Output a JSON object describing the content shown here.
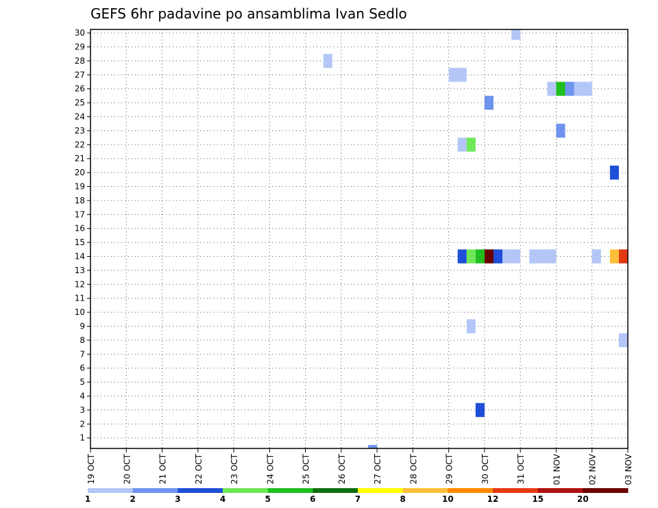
{
  "chart_data": {
    "type": "heatmap",
    "title": "GEFS 6hr padavine po ansamblima Ivan Sedlo",
    "xlabel": "",
    "ylabel": "",
    "x_ticks": [
      "19 OCT",
      "20 OCT",
      "21 OCT",
      "22 OCT",
      "23 OCT",
      "24 OCT",
      "25 OCT",
      "26 OCT",
      "27 OCT",
      "28 OCT",
      "29 OCT",
      "30 OCT",
      "31 OCT",
      "01 NOV",
      "02 NOV",
      "03 NOV"
    ],
    "x_range_days": [
      0,
      15
    ],
    "y_ticks": [
      1,
      2,
      3,
      4,
      5,
      6,
      7,
      8,
      9,
      10,
      11,
      12,
      13,
      14,
      15,
      16,
      17,
      18,
      19,
      20,
      21,
      22,
      23,
      24,
      25,
      26,
      27,
      28,
      29,
      30
    ],
    "y_range": [
      0.25,
      30.25
    ],
    "grid": true,
    "colorbar": {
      "labels": [
        "1",
        "2",
        "3",
        "4",
        "5",
        "6",
        "7",
        "8",
        "10",
        "12",
        "15",
        "20"
      ],
      "colors": [
        "#b3c6f7",
        "#6f94ee",
        "#1f4fd8",
        "#6ee858",
        "#1fbf1f",
        "#0e6e0e",
        "#ffff00",
        "#ffbf3a",
        "#ff8a00",
        "#e43a12",
        "#b01010",
        "#6a0000"
      ]
    },
    "cells": [
      {
        "member": 30,
        "day": 11.875,
        "v": 1
      },
      {
        "member": 28,
        "day": 6.625,
        "v": 1
      },
      {
        "member": 27,
        "day": 10.125,
        "v": 1
      },
      {
        "member": 27,
        "day": 10.375,
        "v": 1
      },
      {
        "member": 26,
        "day": 12.875,
        "v": 1
      },
      {
        "member": 26,
        "day": 13.125,
        "v": 5
      },
      {
        "member": 26,
        "day": 13.375,
        "v": 2
      },
      {
        "member": 26,
        "day": 13.625,
        "v": 1
      },
      {
        "member": 26,
        "day": 13.875,
        "v": 1
      },
      {
        "member": 25,
        "day": 11.125,
        "v": 2
      },
      {
        "member": 23,
        "day": 13.125,
        "v": 2
      },
      {
        "member": 22,
        "day": 10.375,
        "v": 1
      },
      {
        "member": 22,
        "day": 10.625,
        "v": 4
      },
      {
        "member": 20,
        "day": 14.625,
        "v": 3
      },
      {
        "member": 14,
        "day": 10.375,
        "v": 3
      },
      {
        "member": 14,
        "day": 10.625,
        "v": 4
      },
      {
        "member": 14,
        "day": 10.875,
        "v": 5
      },
      {
        "member": 14,
        "day": 11.125,
        "v": 20
      },
      {
        "member": 14,
        "day": 11.375,
        "v": 3
      },
      {
        "member": 14,
        "day": 11.625,
        "v": 1
      },
      {
        "member": 14,
        "day": 11.875,
        "v": 1
      },
      {
        "member": 14,
        "day": 12.375,
        "v": 1
      },
      {
        "member": 14,
        "day": 12.625,
        "v": 1
      },
      {
        "member": 14,
        "day": 12.875,
        "v": 1
      },
      {
        "member": 14,
        "day": 14.125,
        "v": 1
      },
      {
        "member": 14,
        "day": 14.625,
        "v": 8
      },
      {
        "member": 14,
        "day": 14.875,
        "v": 12
      },
      {
        "member": 9,
        "day": 10.625,
        "v": 1
      },
      {
        "member": 8,
        "day": 14.875,
        "v": 1
      },
      {
        "member": 3,
        "day": 10.875,
        "v": 3
      },
      {
        "member": 0,
        "day": 7.875,
        "v": 2
      }
    ]
  }
}
